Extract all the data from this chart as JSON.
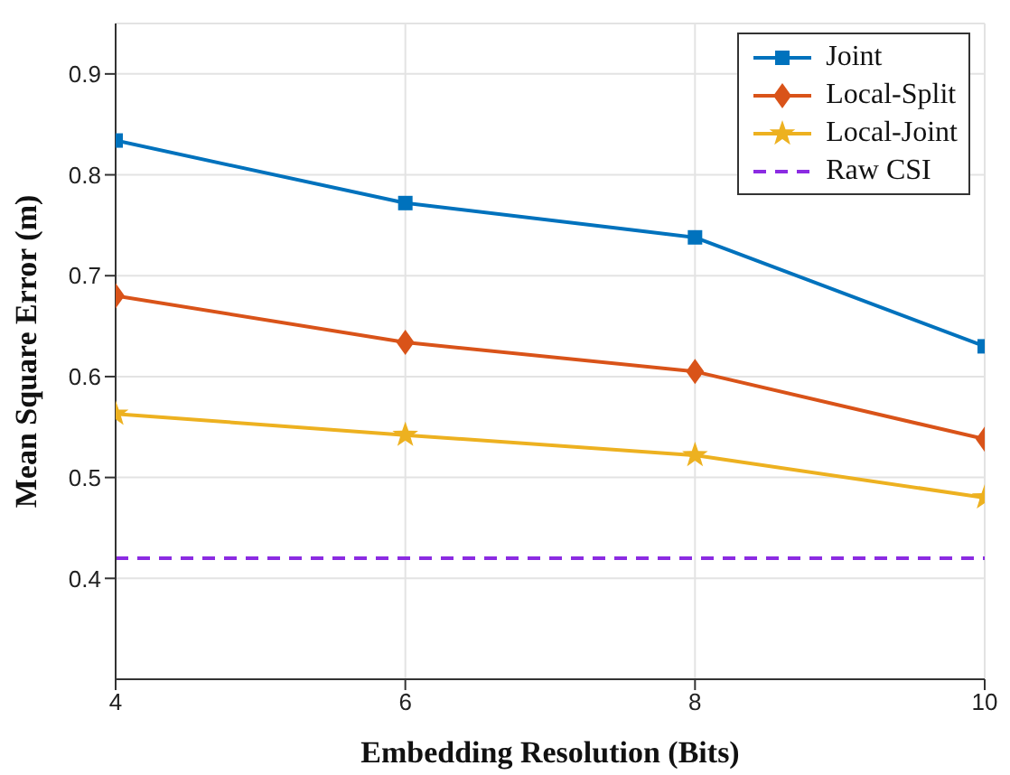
{
  "chart_data": {
    "type": "line",
    "xlabel": "Embedding  Resolution  (Bits)",
    "ylabel": "Mean  Square  Error  (m)",
    "x": [
      4,
      6,
      8,
      10
    ],
    "series": [
      {
        "name": "Joint",
        "color": "#0072bd",
        "values": [
          0.834,
          0.772,
          0.738,
          0.63
        ],
        "marker": "square"
      },
      {
        "name": "Local-Split",
        "color": "#d95319",
        "values": [
          0.68,
          0.634,
          0.605,
          0.538
        ],
        "marker": "diamond"
      },
      {
        "name": "Local-Joint",
        "color": "#edb120",
        "values": [
          0.563,
          0.542,
          0.522,
          0.48
        ],
        "marker": "star"
      },
      {
        "name": "Raw CSI",
        "color": "#8b2be2",
        "x": [
          4,
          10
        ],
        "values": [
          0.42,
          0.42
        ],
        "marker": "none",
        "line_style": "dashed"
      }
    ],
    "xlim": [
      4,
      10
    ],
    "xticks": [
      4,
      6,
      8,
      10
    ],
    "ylim": [
      0.3,
      0.95
    ],
    "yticks": [
      0.4,
      0.5,
      0.6,
      0.7,
      0.8,
      0.9
    ],
    "grid": true,
    "legend": "top right",
    "line_style": "solid"
  }
}
